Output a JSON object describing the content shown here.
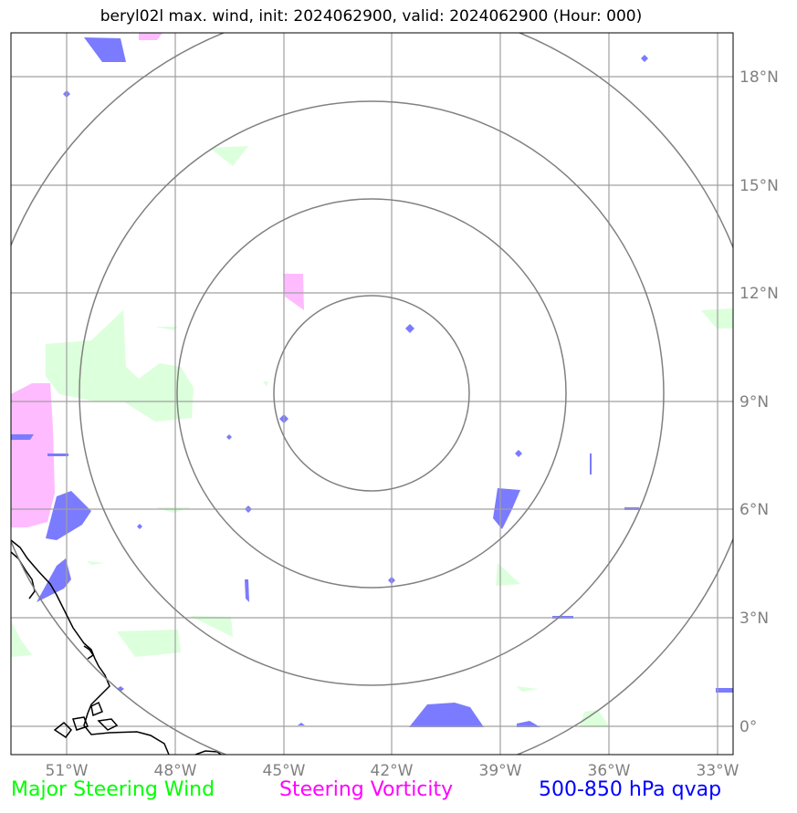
{
  "title": "beryl02l max. wind, init: 2024062900, valid: 2024062900 (Hour: 000)",
  "colors": {
    "grid": "#a0a0a0",
    "rings": "#808080",
    "coast": "#000000",
    "steering_wind": "#00ff00",
    "steering_vorticity": "#ff00ff",
    "qvap": "#0000ff",
    "wind_fill": "#dcffdc",
    "vort_fill": "#ffbbff",
    "qvap_fill": "#7b7bff"
  },
  "axes": {
    "lon_labels": [
      "51°W",
      "48°W",
      "45°W",
      "42°W",
      "39°W",
      "36°W",
      "33°W"
    ],
    "lat_labels": [
      "18°N",
      "15°N",
      "12°N",
      "9°N",
      "6°N",
      "3°N",
      "0°"
    ]
  },
  "legend": {
    "wind": "Major Steering Wind",
    "vorticity": "Steering Vorticity",
    "qvap": "500-850 hPa qvap"
  }
}
